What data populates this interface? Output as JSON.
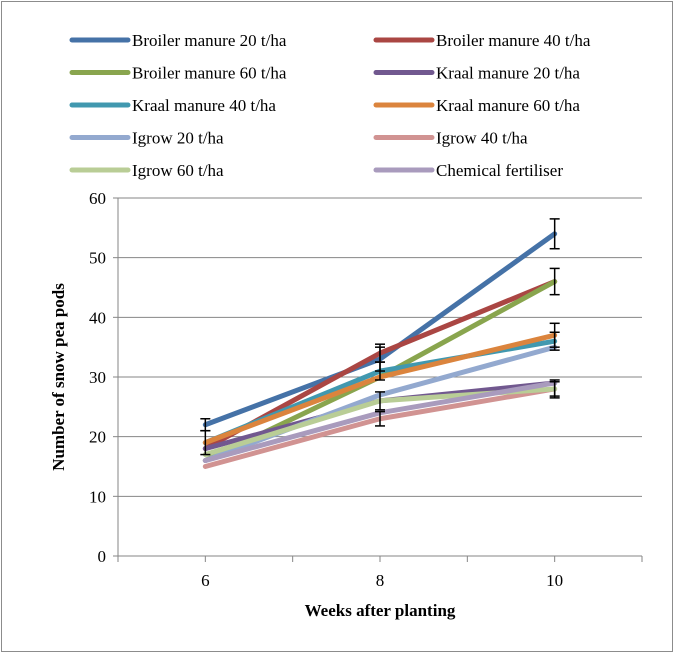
{
  "chart_data": {
    "type": "line",
    "title": "",
    "xlabel": "Weeks after planting",
    "ylabel": "Number of snow pea  pods",
    "x": [
      6,
      8,
      10
    ],
    "xlim": [
      5,
      11
    ],
    "ylim": [
      0,
      60
    ],
    "yticks": [
      0,
      10,
      20,
      30,
      40,
      50,
      60
    ],
    "xticks": [
      6,
      8,
      10
    ],
    "grid": "horizontal",
    "legend_position": "top",
    "series": [
      {
        "name": "Broiler manure 20 t/ha",
        "color": "#4572a7",
        "values": [
          22,
          33,
          54
        ],
        "errors": [
          1,
          2,
          2.5
        ]
      },
      {
        "name": "Broiler manure 40 t/ha",
        "color": "#aa4643",
        "values": [
          18,
          34,
          46
        ],
        "errors": [
          null,
          1.5,
          2.2
        ]
      },
      {
        "name": "Broiler manure 60 t/ha",
        "color": "#89a54e",
        "values": [
          16,
          30,
          46
        ],
        "errors": [
          null,
          null,
          null
        ]
      },
      {
        "name": "Kraal manure 20 t/ha",
        "color": "#71588f",
        "values": [
          18,
          26,
          29
        ],
        "errors": [
          null,
          null,
          null
        ]
      },
      {
        "name": "Kraal manure 40 t/ha",
        "color": "#4198af",
        "values": [
          19,
          31,
          36
        ],
        "errors": [
          null,
          1.5,
          1.5
        ]
      },
      {
        "name": "Kraal manure 60 t/ha",
        "color": "#db843d",
        "values": [
          19,
          30,
          37
        ],
        "errors": [
          2,
          null,
          2
        ]
      },
      {
        "name": "Igrow 20 t/ha",
        "color": "#93a9cf",
        "values": [
          16,
          27,
          35
        ],
        "errors": [
          null,
          null,
          null
        ]
      },
      {
        "name": "Igrow 40 t/ha",
        "color": "#d19392",
        "values": [
          15,
          23,
          28
        ],
        "errors": [
          null,
          1.2,
          1.2
        ]
      },
      {
        "name": "Igrow 60 t/ha",
        "color": "#b9cd96",
        "values": [
          17,
          26,
          28
        ],
        "errors": [
          null,
          1.5,
          1.5
        ]
      },
      {
        "name": "Chemical fertiliser",
        "color": "#a99bbd",
        "values": [
          16,
          24,
          29
        ],
        "errors": [
          null,
          null,
          null
        ]
      }
    ]
  }
}
